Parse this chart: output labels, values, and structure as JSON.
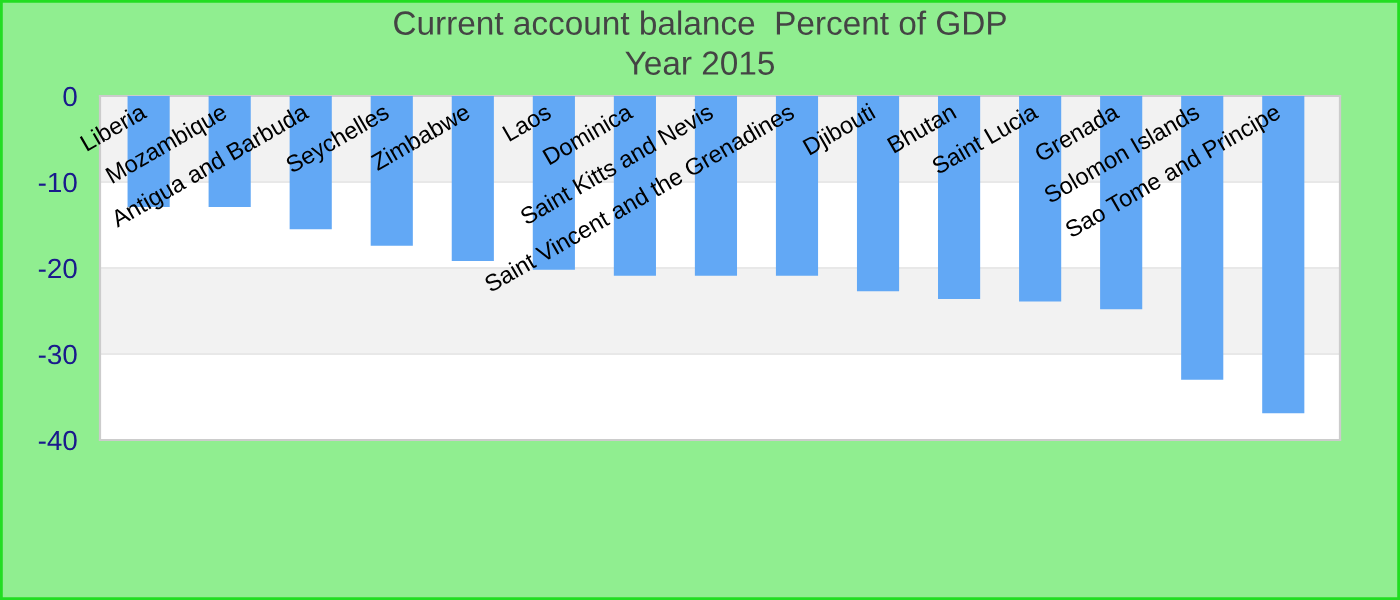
{
  "chart_data": {
    "type": "bar",
    "title": "Current account balance  Percent of GDP",
    "subtitle": "Year 2015",
    "categories": [
      "Liberia",
      "Mozambique",
      "Antigua and Barbuda",
      "Seychelles",
      "Zimbabwe",
      "Laos",
      "Dominica",
      "Saint Kitts and Nevis",
      "Saint Vincent and the Grenadines",
      "Djibouti",
      "Bhutan",
      "Saint Lucia",
      "Grenada",
      "Solomon Islands",
      "Sao Tome and Principe"
    ],
    "values": [
      -12.9,
      -12.9,
      -15.5,
      -17.4,
      -19.2,
      -20.2,
      -20.9,
      -20.9,
      -20.9,
      -22.7,
      -23.6,
      -23.9,
      -24.8,
      -33.0,
      -36.9
    ],
    "color": "#62a8f5",
    "ylim": [
      -40,
      0
    ],
    "yticks": [
      0,
      -10,
      -20,
      -30,
      -40
    ],
    "grid": "y"
  }
}
